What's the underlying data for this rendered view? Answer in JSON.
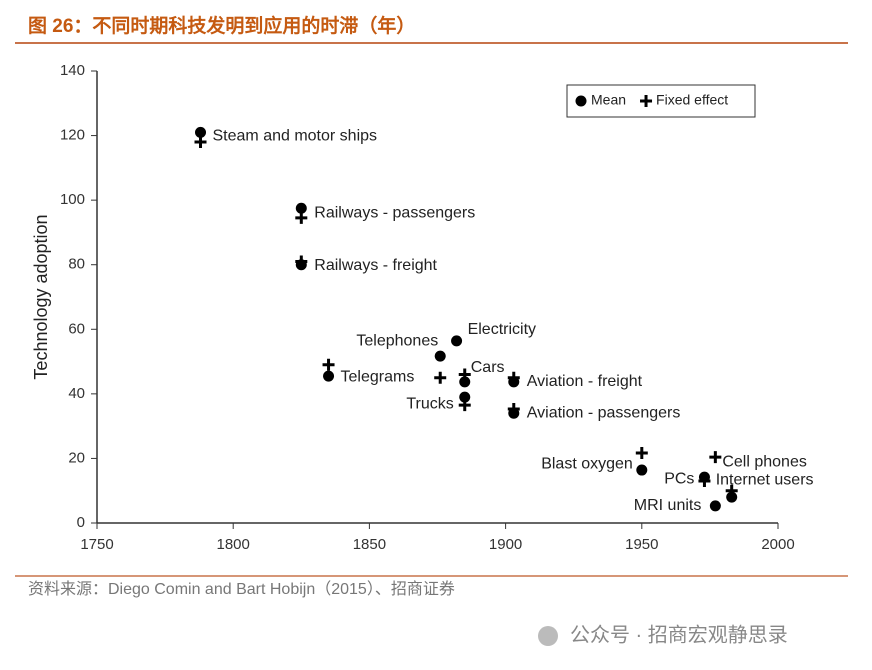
{
  "header": "图 26：不同时期科技发明到应用的时滞（年）",
  "chart_data": {
    "type": "scatter",
    "y_label": "Technology adoption",
    "labels": [
      "Steam and motor ships",
      "Railways - passengers",
      "Railways - freight",
      "Telegrams",
      "Telephones",
      "Electricity",
      "Cars",
      "Trucks",
      "Aviation - freight",
      "Aviation - passengers",
      "Blast oxygen",
      "PCs",
      "Cell phones",
      "Internet users",
      "MRI units"
    ],
    "x": [
      1788,
      1825,
      1825,
      1835,
      1876,
      1882,
      1885,
      1885,
      1903,
      1903,
      1950,
      1973,
      1977,
      1983,
      1977
    ],
    "series": [
      {
        "name": "Mean",
        "color": "#000000",
        "values": [
          121,
          97.5,
          80,
          45.5,
          51.7,
          56.4,
          43.7,
          39,
          43.7,
          34,
          16.4,
          14.2,
          null,
          8,
          5.3
        ]
      },
      {
        "name": "Fixed effect",
        "color": "#000000",
        "values": [
          118,
          94.5,
          81,
          49,
          45,
          null,
          46,
          36.5,
          45,
          35.3,
          21.7,
          13,
          20.4,
          10,
          null
        ]
      }
    ],
    "xlim": [
      1750,
      2000
    ],
    "xticks": [
      1750,
      1800,
      1850,
      1900,
      1950,
      2000
    ],
    "ylim": [
      0,
      140
    ],
    "yticks": [
      0,
      20,
      40,
      60,
      80,
      100,
      120,
      140
    ],
    "legend": "top-right"
  },
  "source": "资料来源：Diego Comin and Bart Hobijn（2015）、招商证券",
  "watermark": "公众号 · 招商宏观静思录"
}
